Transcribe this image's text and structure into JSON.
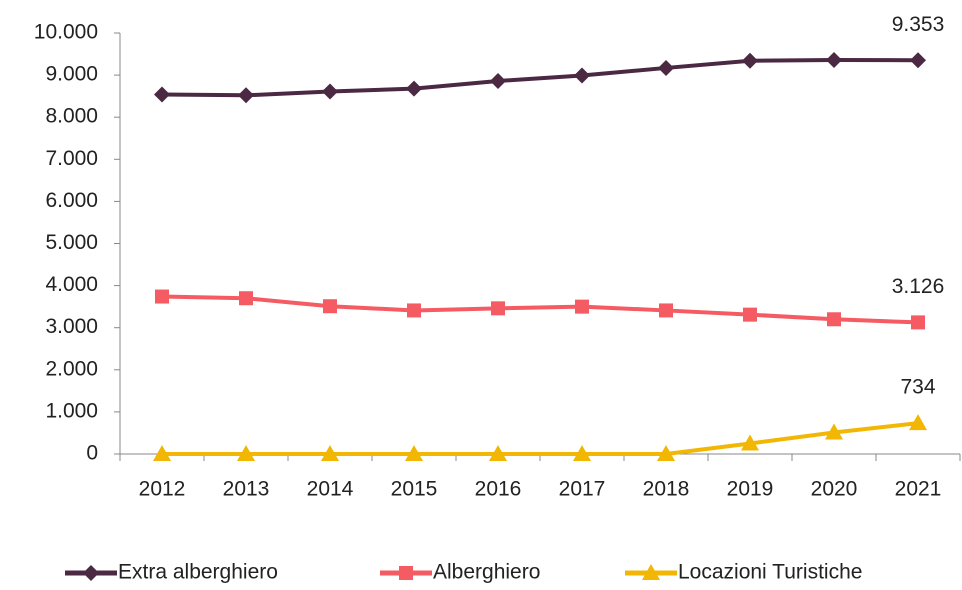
{
  "chart_data": {
    "type": "line",
    "categories": [
      "2012",
      "2013",
      "2014",
      "2015",
      "2016",
      "2017",
      "2018",
      "2019",
      "2020",
      "2021"
    ],
    "series": [
      {
        "name": "Extra alberghiero",
        "color": "#4b2942",
        "marker": "diamond",
        "values": [
          8540,
          8520,
          8610,
          8680,
          8860,
          8990,
          9170,
          9340,
          9360,
          9353
        ],
        "value_labels": [
          null,
          null,
          null,
          null,
          null,
          null,
          null,
          null,
          null,
          "9.353"
        ]
      },
      {
        "name": "Alberghiero",
        "color": "#f45b63",
        "marker": "square",
        "values": [
          3740,
          3700,
          3510,
          3410,
          3460,
          3500,
          3410,
          3310,
          3200,
          3126
        ],
        "value_labels": [
          null,
          null,
          null,
          null,
          null,
          null,
          null,
          null,
          null,
          "3.126"
        ]
      },
      {
        "name": "Locazioni Turistiche",
        "color": "#f2b705",
        "marker": "triangle",
        "values": [
          0,
          0,
          0,
          0,
          0,
          0,
          0,
          250,
          510,
          734
        ],
        "value_labels": [
          null,
          null,
          null,
          null,
          null,
          null,
          null,
          null,
          null,
          "734"
        ]
      }
    ],
    "ylim": [
      0,
      10000
    ],
    "yticks": [
      0,
      {
        "value": 1000,
        "label": "1.000"
      },
      {
        "value": 2000,
        "label": "2.000"
      },
      {
        "value": 3000,
        "label": "3.000"
      },
      {
        "value": 4000,
        "label": "4.000"
      },
      {
        "value": 5000,
        "label": "5.000"
      },
      {
        "value": 6000,
        "label": "6.000"
      },
      {
        "value": 7000,
        "label": "7.000"
      },
      {
        "value": 8000,
        "label": "8.000"
      },
      {
        "value": 9000,
        "label": "9.000"
      },
      {
        "value": 10000,
        "label": "10.000"
      }
    ],
    "grid": false,
    "legend": "bottom"
  }
}
